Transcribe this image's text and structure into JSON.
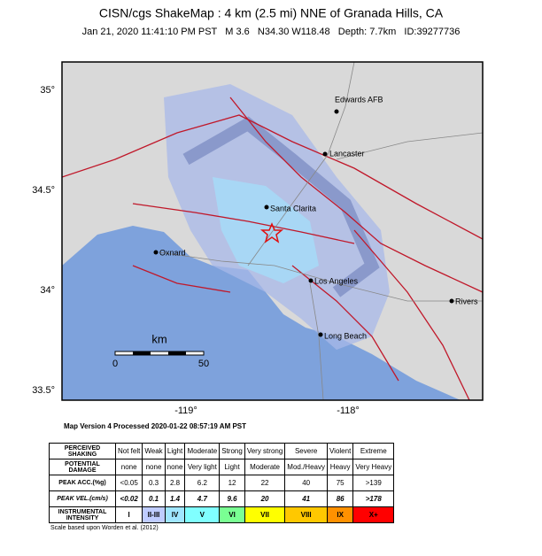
{
  "header": {
    "title": "CISN/cgs ShakeMap : 4 km (2.5 mi) NNE of Granada Hills, CA",
    "subtitle": "Jan 21, 2020 11:41:10 PM PST   M 3.6   N34.30 W118.48   Depth: 7.7km   ID:39277736"
  },
  "map": {
    "lat_labels": [
      "35°",
      "34.5°",
      "34°",
      "33.5°"
    ],
    "lon_labels": [
      "-119°",
      "-118°"
    ],
    "cities": [
      "Edwards AFB",
      "Lancaster",
      "Santa Clarita",
      "Oxnard",
      "Los Angeles",
      "Rivers",
      "Long Beach"
    ],
    "scale": {
      "unit": "km",
      "start": "0",
      "end": "50"
    }
  },
  "version": "Map Version 4 Processed 2020-01-22 08:57:19 AM PST",
  "table": {
    "header": [
      "PERCEIVED SHAKING",
      "Not felt",
      "Weak",
      "Light",
      "Moderate",
      "Strong",
      "Very strong",
      "Severe",
      "Violent",
      "Extreme"
    ],
    "rows": [
      [
        "POTENTIAL DAMAGE",
        "none",
        "none",
        "none",
        "Very light",
        "Light",
        "Moderate",
        "Mod./Heavy",
        "Heavy",
        "Very Heavy"
      ],
      [
        "PEAK ACC.(%g)",
        "<0.05",
        "0.3",
        "2.8",
        "6.2",
        "12",
        "22",
        "40",
        "75",
        ">139"
      ],
      [
        "PEAK VEL.(cm/s)",
        "<0.02",
        "0.1",
        "1.4",
        "4.7",
        "9.6",
        "20",
        "41",
        "86",
        ">178"
      ],
      [
        "INSTRUMENTAL INTENSITY",
        "I",
        "II-III",
        "IV",
        "V",
        "VI",
        "VII",
        "VIII",
        "IX",
        "X+"
      ]
    ]
  },
  "footnote": "Scale based upon Worden et al. (2012)"
}
